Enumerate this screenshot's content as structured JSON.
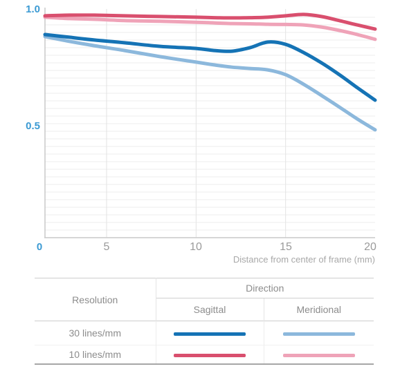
{
  "chart_data": {
    "type": "line",
    "title": "",
    "xlabel": "Distance from center of frame (mm)",
    "ylabel": "",
    "xlim": [
      0,
      20
    ],
    "ylim": [
      0,
      1.0
    ],
    "x_ticks": [
      0,
      5,
      10,
      15,
      20
    ],
    "y_ticks": [
      0,
      0.5,
      1.0
    ],
    "grid": true,
    "legend_position": "table-below",
    "x": [
      0,
      2,
      4,
      6,
      8,
      10,
      11,
      12,
      13,
      14,
      15,
      16,
      17,
      18,
      19,
      20
    ],
    "series": [
      {
        "name": "30 lines/mm Sagittal",
        "color": "#1573b5",
        "values": [
          0.891,
          0.879,
          0.867,
          0.855,
          0.839,
          0.83,
          0.821,
          0.818,
          0.833,
          0.858,
          0.848,
          0.812,
          0.767,
          0.715,
          0.658,
          0.603
        ]
      },
      {
        "name": "30 lines/mm Meridional",
        "color": "#8cb8dc",
        "values": [
          0.882,
          0.861,
          0.842,
          0.821,
          0.794,
          0.77,
          0.758,
          0.748,
          0.742,
          0.736,
          0.715,
          0.673,
          0.624,
          0.573,
          0.521,
          0.473
        ]
      },
      {
        "name": "10 lines/mm Sagittal",
        "color": "#d94f6e",
        "values": [
          0.973,
          0.976,
          0.976,
          0.973,
          0.97,
          0.967,
          0.965,
          0.964,
          0.965,
          0.967,
          0.973,
          0.979,
          0.97,
          0.952,
          0.933,
          0.915
        ]
      },
      {
        "name": "10 lines/mm Meridional",
        "color": "#efa3b8",
        "values": [
          0.967,
          0.961,
          0.958,
          0.952,
          0.949,
          0.945,
          0.942,
          0.939,
          0.938,
          0.936,
          0.935,
          0.933,
          0.924,
          0.909,
          0.891,
          0.87
        ]
      }
    ]
  },
  "axis": {
    "y_labels": [
      "1.0",
      "0.5"
    ],
    "origin_label": "0",
    "x_tick_labels": [
      "5",
      "10",
      "15",
      "20"
    ],
    "caption": "Distance from center of frame (mm)"
  },
  "table": {
    "resolution_header": "Resolution",
    "direction_header": "Direction",
    "sagittal_header": "Sagittal",
    "meridional_header": "Meridional",
    "rows": [
      {
        "label": "30 lines/mm",
        "sagittal_series": 0,
        "meridional_series": 1
      },
      {
        "label": "10 lines/mm",
        "sagittal_series": 2,
        "meridional_series": 3
      }
    ]
  },
  "colors": {
    "tick_label_blue": "#3b9ad3",
    "tick_label_gray": "#9a9a9a",
    "grid_line": "#ededed",
    "axis_line": "#c9c9c9",
    "sagittal_30": "#1573b5",
    "meridional_30": "#8cb8dc",
    "sagittal_10": "#d94f6e",
    "meridional_10": "#efa3b8"
  }
}
